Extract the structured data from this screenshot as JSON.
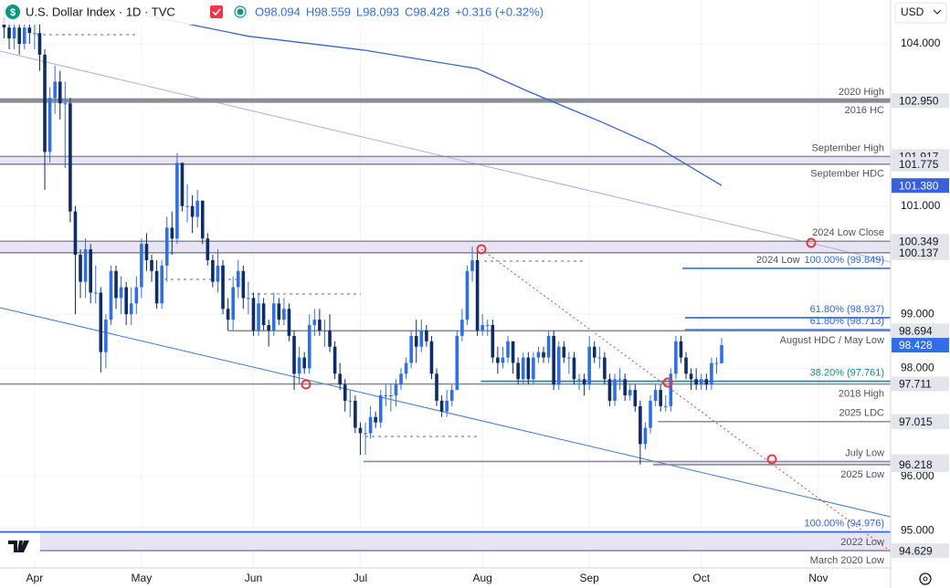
{
  "header": {
    "logo": "$",
    "symbol": "U.S. Dollar Index · 1D · TVC",
    "ohlc": [
      "O98.094",
      "H98.559",
      "L98.093",
      "C98.428",
      "+0.316 (+0.32%)"
    ],
    "currency": "USD"
  },
  "chart_data": {
    "type": "candlestick",
    "up_color": "#2f6fe6",
    "down_color": "#0e2d66",
    "x": [
      -6,
      -5,
      -4,
      -3,
      -2,
      -1,
      0,
      1,
      2,
      3,
      4,
      5,
      6,
      7,
      8,
      9,
      10,
      11,
      12,
      13,
      14,
      15,
      16,
      17,
      18,
      19,
      20,
      21,
      22,
      23,
      24,
      25,
      26,
      27,
      28,
      29,
      30,
      31,
      32,
      33,
      34,
      35,
      36,
      37,
      38,
      39,
      40,
      41,
      42,
      43,
      44,
      45,
      46,
      47,
      48,
      49,
      50,
      51,
      52,
      53,
      54,
      55,
      56,
      57,
      58,
      59,
      60,
      61,
      62,
      63,
      64,
      65,
      66,
      67,
      68,
      69,
      70,
      71,
      72,
      73,
      74,
      75,
      76,
      77,
      78,
      79,
      80,
      81,
      82,
      83,
      84,
      85,
      86,
      87,
      88,
      89,
      90,
      91,
      92,
      93,
      94,
      95,
      96,
      97,
      98,
      99,
      100,
      101,
      102,
      103,
      104,
      105,
      106,
      107,
      108,
      109,
      110,
      111,
      112,
      113,
      114,
      115,
      116,
      117,
      118,
      119,
      120,
      121,
      122,
      123,
      124,
      125,
      126,
      127,
      128,
      129,
      130,
      131,
      132,
      133,
      134,
      135
    ],
    "candles": [
      [
        104.5,
        104.7,
        104.1,
        104.3
      ],
      [
        104.3,
        104.5,
        103.9,
        104.1
      ],
      [
        104.1,
        104.5,
        103.9,
        104.3
      ],
      [
        104.3,
        104.4,
        103.8,
        104.0
      ],
      [
        104.0,
        104.5,
        103.9,
        104.3
      ],
      [
        104.3,
        104.5,
        104.0,
        104.2
      ],
      [
        104.2,
        104.5,
        103.9,
        104.2
      ],
      [
        104.2,
        104.4,
        103.5,
        103.8
      ],
      [
        103.8,
        103.9,
        101.3,
        102.0
      ],
      [
        102.0,
        103.2,
        101.8,
        103.0
      ],
      [
        103.0,
        103.6,
        102.7,
        103.3
      ],
      [
        103.3,
        103.5,
        102.6,
        102.9
      ],
      [
        102.9,
        103.3,
        101.7,
        102.9
      ],
      [
        102.9,
        103.0,
        100.7,
        100.9
      ],
      [
        100.9,
        101.0,
        99.0,
        100.1
      ],
      [
        100.1,
        100.2,
        99.3,
        99.6
      ],
      [
        99.6,
        100.4,
        99.3,
        100.2
      ],
      [
        100.2,
        100.3,
        99.2,
        99.4
      ],
      [
        99.4,
        99.9,
        99.2,
        99.4
      ],
      [
        99.4,
        99.5,
        97.92,
        98.3
      ],
      [
        98.3,
        99.0,
        98.0,
        98.9
      ],
      [
        98.9,
        99.9,
        98.8,
        99.8
      ],
      [
        99.8,
        99.9,
        99.1,
        99.3
      ],
      [
        99.3,
        99.7,
        99.0,
        99.5
      ],
      [
        99.5,
        99.6,
        98.8,
        99.0
      ],
      [
        99.0,
        99.5,
        98.8,
        99.2
      ],
      [
        99.2,
        99.7,
        99.0,
        99.5
      ],
      [
        99.5,
        100.4,
        99.3,
        100.3
      ],
      [
        100.3,
        100.5,
        99.8,
        100.0
      ],
      [
        100.0,
        100.1,
        99.6,
        99.8
      ],
      [
        99.8,
        100.0,
        99.1,
        99.2
      ],
      [
        99.2,
        100.0,
        99.1,
        99.9
      ],
      [
        99.9,
        100.8,
        99.6,
        100.6
      ],
      [
        100.6,
        100.9,
        100.1,
        100.4
      ],
      [
        100.4,
        101.98,
        100.3,
        101.8
      ],
      [
        101.8,
        101.8,
        100.9,
        101.0
      ],
      [
        101.0,
        101.4,
        100.7,
        101.0
      ],
      [
        101.0,
        101.2,
        100.5,
        100.8
      ],
      [
        100.8,
        101.3,
        100.6,
        101.1
      ],
      [
        101.1,
        101.1,
        100.3,
        100.4
      ],
      [
        100.4,
        100.5,
        99.9,
        100.0
      ],
      [
        100.0,
        100.1,
        99.5,
        99.6
      ],
      [
        99.6,
        100.2,
        99.4,
        99.9
      ],
      [
        99.9,
        100.0,
        99.0,
        99.1
      ],
      [
        99.1,
        99.3,
        98.7,
        98.9
      ],
      [
        98.9,
        99.7,
        98.7,
        99.5
      ],
      [
        99.5,
        100.0,
        99.3,
        99.8
      ],
      [
        99.8,
        99.9,
        99.1,
        99.3
      ],
      [
        99.3,
        99.6,
        99.0,
        99.3
      ],
      [
        99.3,
        99.4,
        98.6,
        98.7
      ],
      [
        98.7,
        99.4,
        98.6,
        99.2
      ],
      [
        99.2,
        99.3,
        98.7,
        98.8
      ],
      [
        98.8,
        98.9,
        98.4,
        98.7
      ],
      [
        98.7,
        99.4,
        98.6,
        99.2
      ],
      [
        99.2,
        99.3,
        98.8,
        98.9
      ],
      [
        98.9,
        99.3,
        98.8,
        99.1
      ],
      [
        99.1,
        99.2,
        98.5,
        98.6
      ],
      [
        98.6,
        98.7,
        97.6,
        97.9
      ],
      [
        97.9,
        98.4,
        97.7,
        98.2
      ],
      [
        98.2,
        98.3,
        97.9,
        98.0
      ],
      [
        98.0,
        99.0,
        97.9,
        98.8
      ],
      [
        98.8,
        99.1,
        98.6,
        98.9
      ],
      [
        98.9,
        99.1,
        98.6,
        98.7
      ],
      [
        98.7,
        98.9,
        98.4,
        98.7
      ],
      [
        98.7,
        99.0,
        98.3,
        98.4
      ],
      [
        98.4,
        98.5,
        97.8,
        97.9
      ],
      [
        97.9,
        98.1,
        97.6,
        97.7
      ],
      [
        97.7,
        97.8,
        97.2,
        97.4
      ],
      [
        97.4,
        97.6,
        97.1,
        97.4
      ],
      [
        97.4,
        97.5,
        96.8,
        96.9
      ],
      [
        96.9,
        97.0,
        96.4,
        96.8
      ],
      [
        96.8,
        97.0,
        96.4,
        96.8
      ],
      [
        96.8,
        97.3,
        96.7,
        97.1
      ],
      [
        97.1,
        97.2,
        96.9,
        97.0
      ],
      [
        97.0,
        97.6,
        96.9,
        97.5
      ],
      [
        97.5,
        97.7,
        97.3,
        97.5
      ],
      [
        97.5,
        97.7,
        97.2,
        97.5
      ],
      [
        97.5,
        97.8,
        97.3,
        97.7
      ],
      [
        97.7,
        98.0,
        97.6,
        97.9
      ],
      [
        97.9,
        98.2,
        97.8,
        98.1
      ],
      [
        98.1,
        98.7,
        98.0,
        98.6
      ],
      [
        98.6,
        98.9,
        98.1,
        98.4
      ],
      [
        98.4,
        98.9,
        98.3,
        98.7
      ],
      [
        98.7,
        98.8,
        98.4,
        98.5
      ],
      [
        98.5,
        98.6,
        97.8,
        97.9
      ],
      [
        97.9,
        98.0,
        97.3,
        97.4
      ],
      [
        97.4,
        97.5,
        97.1,
        97.2
      ],
      [
        97.2,
        97.6,
        97.1,
        97.4
      ],
      [
        97.4,
        97.7,
        97.3,
        97.6
      ],
      [
        97.6,
        98.7,
        97.6,
        98.6
      ],
      [
        98.6,
        99.1,
        98.5,
        98.9
      ],
      [
        98.9,
        99.9,
        98.8,
        99.8
      ],
      [
        99.8,
        100.25,
        99.6,
        100.0
      ],
      [
        100.0,
        100.2,
        98.6,
        98.7
      ],
      [
        98.7,
        99.0,
        98.6,
        98.8
      ],
      [
        98.8,
        98.9,
        98.6,
        98.8
      ],
      [
        98.8,
        98.9,
        98.1,
        98.2
      ],
      [
        98.2,
        98.4,
        97.9,
        98.1
      ],
      [
        98.1,
        98.4,
        98.0,
        98.2
      ],
      [
        98.2,
        98.6,
        98.1,
        98.5
      ],
      [
        98.5,
        98.5,
        97.9,
        98.1
      ],
      [
        98.1,
        98.2,
        97.7,
        97.8
      ],
      [
        97.8,
        98.3,
        97.7,
        98.2
      ],
      [
        98.2,
        98.3,
        97.7,
        97.8
      ],
      [
        97.8,
        98.3,
        97.7,
        98.2
      ],
      [
        98.2,
        98.4,
        98.1,
        98.3
      ],
      [
        98.3,
        98.4,
        98.1,
        98.2
      ],
      [
        98.2,
        98.7,
        98.1,
        98.6
      ],
      [
        98.6,
        98.7,
        97.6,
        97.7
      ],
      [
        97.7,
        98.5,
        97.6,
        98.4
      ],
      [
        98.4,
        98.5,
        98.1,
        98.2
      ],
      [
        98.2,
        98.3,
        97.9,
        98.2
      ],
      [
        98.2,
        98.3,
        97.7,
        97.8
      ],
      [
        97.8,
        97.9,
        97.6,
        97.8
      ],
      [
        97.8,
        97.9,
        97.5,
        97.7
      ],
      [
        97.7,
        98.6,
        97.6,
        98.4
      ],
      [
        98.4,
        98.5,
        98.1,
        98.2
      ],
      [
        98.2,
        98.4,
        98.0,
        98.2
      ],
      [
        98.2,
        98.3,
        97.7,
        97.8
      ],
      [
        97.8,
        97.9,
        97.3,
        97.4
      ],
      [
        97.4,
        97.9,
        97.3,
        97.8
      ],
      [
        97.8,
        98.0,
        97.6,
        97.8
      ],
      [
        97.8,
        97.9,
        97.4,
        97.5
      ],
      [
        97.5,
        97.7,
        97.4,
        97.6
      ],
      [
        97.6,
        97.7,
        97.2,
        97.3
      ],
      [
        97.3,
        97.4,
        96.22,
        96.6
      ],
      [
        96.6,
        97.0,
        96.5,
        96.9
      ],
      [
        96.9,
        97.5,
        96.8,
        97.4
      ],
      [
        97.4,
        97.7,
        97.3,
        97.6
      ],
      [
        97.6,
        97.7,
        97.2,
        97.3
      ],
      [
        97.3,
        97.5,
        97.2,
        97.3
      ],
      [
        97.3,
        98.0,
        97.2,
        97.9
      ],
      [
        97.9,
        98.6,
        97.8,
        98.5
      ],
      [
        98.5,
        98.6,
        98.1,
        98.2
      ],
      [
        98.2,
        98.3,
        97.8,
        97.9
      ],
      [
        97.9,
        98.0,
        97.6,
        97.8
      ],
      [
        97.8,
        98.0,
        97.6,
        97.7
      ],
      [
        97.7,
        97.9,
        97.6,
        97.8
      ],
      [
        97.8,
        97.9,
        97.6,
        97.7
      ],
      [
        97.7,
        98.2,
        97.6,
        98.1
      ],
      [
        98.1,
        98.2,
        97.9,
        98.1
      ],
      [
        98.094,
        98.559,
        98.093,
        98.428
      ]
    ],
    "last_label": "98.428",
    "moving_average": {
      "color": "#3a62d8",
      "x": [
        20,
        42,
        65,
        87,
        97,
        112,
        122,
        135
      ],
      "values": [
        104.56,
        104.14,
        103.88,
        103.54,
        103.12,
        102.53,
        102.11,
        101.38
      ],
      "label": "101.380"
    },
    "xlim": [
      -6.8,
      168.2
    ],
    "xticks": [
      {
        "value": 0,
        "label": "Apr"
      },
      {
        "value": 21,
        "label": "May"
      },
      {
        "value": 43,
        "label": "Jun"
      },
      {
        "value": 64,
        "label": "Jul"
      },
      {
        "value": 88,
        "label": "Aug"
      },
      {
        "value": 109,
        "label": "Sep"
      },
      {
        "value": 131,
        "label": "Oct"
      },
      {
        "value": 154,
        "label": "Nov"
      }
    ],
    "ylim": [
      94.31,
      104.81
    ],
    "yticks": [
      {
        "value": 104,
        "label": "104.000"
      },
      {
        "value": 101,
        "label": "101.000"
      },
      {
        "value": 99,
        "label": "99.000"
      },
      {
        "value": 98,
        "label": "98.000"
      },
      {
        "value": 96,
        "label": "96.000"
      },
      {
        "value": 95,
        "label": "95.000"
      }
    ],
    "grid": true,
    "levels": [
      {
        "value": 102.95,
        "label": "102.950",
        "from": -6.8,
        "color": "#8a8d96",
        "thick": true,
        "notes_above": "2020 High",
        "notes_below": "2016 HC"
      },
      {
        "value": 101.917,
        "label": "101.917",
        "from": -6.8,
        "color": "#8a8d96",
        "band": true,
        "notes_above": "September High"
      },
      {
        "value": 101.775,
        "label": "101.775",
        "from": -6.8,
        "color": "#8a8d96",
        "notes_below": "September HDC"
      },
      {
        "value": 100.349,
        "label": "100.349",
        "from": -6.8,
        "color": "#8a8d96",
        "band": true,
        "notes_above": "2024 Low Close"
      },
      {
        "value": 100.137,
        "label": "100.137",
        "from": -6.8,
        "color": "#8a8d96"
      },
      {
        "value": 99.849,
        "from": 127.3,
        "color": "#2962ff",
        "fib": "100.00% (99.849)",
        "notes_above": "2024 Low"
      },
      {
        "value": 98.937,
        "from": 127.8,
        "color": "#2962ff",
        "fib": "61.80% (98.937)"
      },
      {
        "value": 98.713,
        "from": 127.8,
        "color": "#2962ff",
        "fib": "61.80% (98.713)"
      },
      {
        "value": 98.694,
        "label": "98.694",
        "from": 38,
        "color": "#8a8d96",
        "notes_below": "August HDC / May Low"
      },
      {
        "value": 97.761,
        "from": 87.7,
        "color": "#17888a",
        "fib": "38.20% (97.761)"
      },
      {
        "value": 97.711,
        "label": "97.711",
        "from": -6.8,
        "color": "#8a8d96",
        "notes_below": "2018 High"
      },
      {
        "value": 97.015,
        "label": "97.015",
        "from": 122.5,
        "color": "#8a8d96",
        "notes_above": "2025 LDC"
      },
      {
        "value": 96.277,
        "label": "96.277",
        "from": 64.6,
        "color": "#8a8d96",
        "band": true,
        "notes_above": "July Low"
      },
      {
        "value": 96.218,
        "label": "96.218",
        "from": 121.5,
        "color": "#8a8d96",
        "notes_below": "2025 Low"
      },
      {
        "value": 94.976,
        "from": -6.8,
        "color": "#2962ff",
        "band": true,
        "fib": "100.00% (94.976)"
      },
      {
        "value": 94.629,
        "label": "94.629",
        "from": -6.8,
        "color": "#8a8d96",
        "notes_above": "2022 Low",
        "notes_below": "March 2020 Low"
      }
    ]
  }
}
